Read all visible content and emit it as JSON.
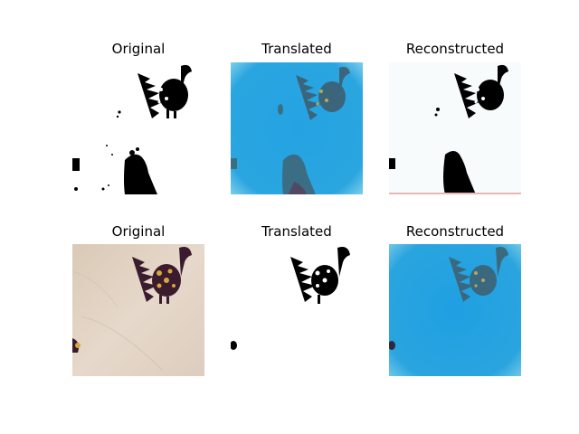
{
  "figure": {
    "rows": [
      {
        "panels": [
          {
            "title": "Original",
            "style": "binary"
          },
          {
            "title": "Translated",
            "style": "blue"
          },
          {
            "title": "Reconstructed",
            "style": "binary"
          }
        ]
      },
      {
        "panels": [
          {
            "title": "Original",
            "style": "fabric"
          },
          {
            "title": "Translated",
            "style": "binary"
          },
          {
            "title": "Reconstructed",
            "style": "blue"
          }
        ]
      }
    ]
  },
  "colors": {
    "blue_bg": "#27a5e2",
    "blue_edge": "#63c3ea",
    "fabric_bg": "#e2d3c4",
    "peacock_dark": "#2a1621",
    "peacock_gold": "#d2a43b",
    "binary_ink": "#000000"
  }
}
